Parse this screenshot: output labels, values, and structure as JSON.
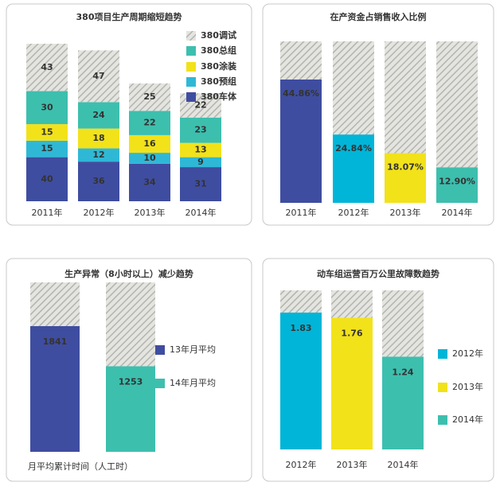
{
  "chart_data": [
    {
      "type": "stacked_bar",
      "title": "380项目生产周期缩短趋势",
      "categories": [
        "2011年",
        "2012年",
        "2013年",
        "2014年"
      ],
      "series": [
        {
          "name": "380车体",
          "color": "#3f4da0",
          "values": [
            40,
            36,
            34,
            31
          ]
        },
        {
          "name": "380预组",
          "color": "#2fb8d6",
          "values": [
            15,
            12,
            10,
            9
          ]
        },
        {
          "name": "380涂装",
          "color": "#f2e21a",
          "values": [
            15,
            18,
            16,
            13
          ]
        },
        {
          "name": "380总组",
          "color": "#3dbfae",
          "values": [
            30,
            24,
            22,
            23
          ]
        },
        {
          "name": "380调试",
          "color": "#cfcfcf",
          "hatch": true,
          "values": [
            43,
            47,
            25,
            22
          ]
        }
      ],
      "legend": "upper right"
    },
    {
      "type": "bar",
      "title": "在产资金占销售收入比例",
      "categories": [
        "2011年",
        "2012年",
        "2013年",
        "2014年"
      ],
      "values": [
        44.86,
        24.84,
        18.07,
        12.9
      ],
      "value_labels": [
        "44.86%",
        "24.84%",
        "18.07%",
        "12.90%"
      ],
      "colors": [
        "#3f4da0",
        "#00b5d8",
        "#f2e21a",
        "#3dbfae"
      ]
    },
    {
      "type": "bar",
      "title": "生产异常（8小时以上）减少趋势",
      "categories": [
        "13年月平均",
        "14年月平均"
      ],
      "values": [
        1841,
        1253
      ],
      "colors": [
        "#3f4da0",
        "#3dbfae"
      ],
      "legend": "right",
      "xlabel": "月平均累计时间（人工时）"
    },
    {
      "type": "bar",
      "title": "动车组运营百万公里故障数趋势",
      "categories": [
        "2012年",
        "2013年",
        "2014年"
      ],
      "values": [
        1.83,
        1.76,
        1.24
      ],
      "colors": [
        "#00b5d8",
        "#f2e21a",
        "#3dbfae"
      ],
      "legend": "right"
    }
  ]
}
